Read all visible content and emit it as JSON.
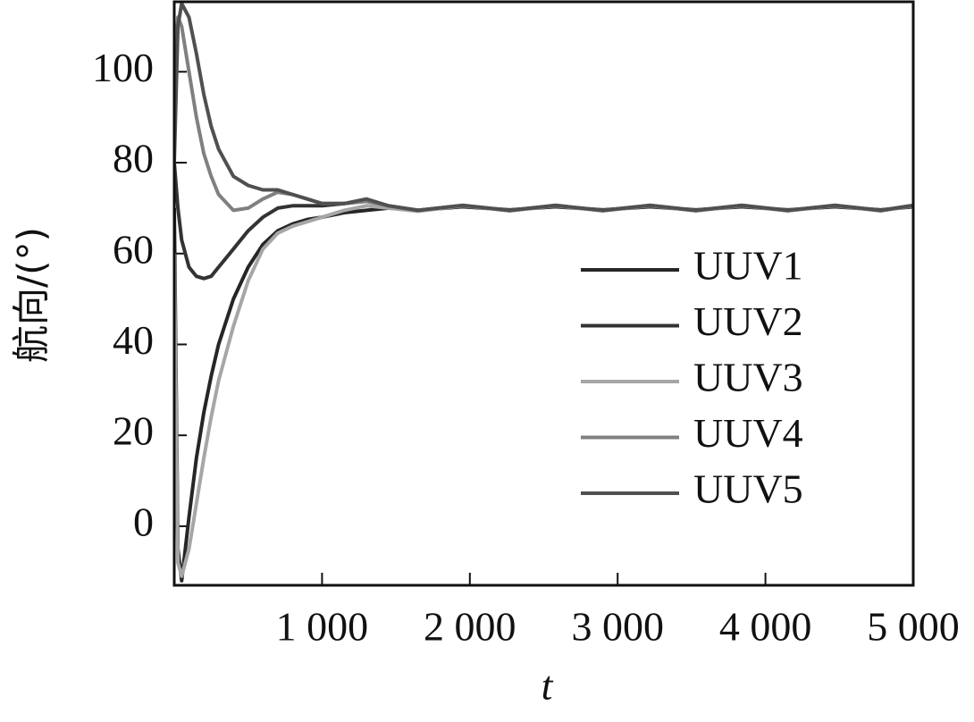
{
  "chart_data": {
    "type": "line",
    "xlabel": "t",
    "ylabel": "航向/(°)",
    "x": [
      0,
      25,
      50,
      100,
      150,
      200,
      250,
      300,
      400,
      500,
      600,
      700,
      800,
      900,
      1000,
      1150,
      1300,
      1450,
      1650,
      1950,
      2270,
      2580,
      2900,
      3220,
      3530,
      3840,
      4150,
      4470,
      4780,
      5000
    ],
    "series": [
      {
        "name": "UUV1",
        "color": "#262626",
        "values": [
          70,
          -5,
          -12,
          2,
          15,
          25,
          33,
          40,
          50,
          57,
          62,
          65,
          66.5,
          67.5,
          68,
          69,
          69.5,
          70,
          69.5,
          70.3,
          69.6,
          70.3,
          69.6,
          70.3,
          69.6,
          70.3,
          69.6,
          70.3,
          69.6,
          70.3
        ]
      },
      {
        "name": "UUV2",
        "color": "#333333",
        "values": [
          80,
          70,
          63,
          57,
          55,
          54.5,
          55,
          57,
          61,
          65,
          68,
          70,
          70.5,
          70.5,
          70.5,
          71,
          71.5,
          70.5,
          69.5,
          70.5,
          69.5,
          70.5,
          69.5,
          70.5,
          69.5,
          70.5,
          69.5,
          70.5,
          69.5,
          70.5
        ]
      },
      {
        "name": "UUV3",
        "color": "#a6a6a6",
        "values": [
          60,
          -8,
          -11,
          -5,
          5,
          15,
          24,
          32,
          44,
          54,
          61,
          64.5,
          66,
          67,
          68,
          69.5,
          70.5,
          70,
          69.3,
          70.5,
          69.4,
          70.5,
          69.4,
          70.5,
          69.4,
          70.5,
          69.4,
          70.5,
          69.4,
          70.5
        ]
      },
      {
        "name": "UUV4",
        "color": "#808080",
        "values": [
          100,
          112,
          110,
          100,
          90,
          82,
          77,
          73,
          69.5,
          70,
          72,
          73.5,
          73,
          72,
          71,
          71,
          71.5,
          70.5,
          69.5,
          70.6,
          69.4,
          70.6,
          69.4,
          70.6,
          69.4,
          70.6,
          69.4,
          70.6,
          69.4,
          70.6
        ]
      },
      {
        "name": "UUV5",
        "color": "#505050",
        "values": [
          80,
          110,
          115,
          112,
          104,
          95,
          88,
          83,
          77,
          75,
          74,
          74,
          73,
          72,
          71,
          71,
          72,
          70.5,
          69.5,
          70.6,
          69.5,
          70.6,
          69.5,
          70.6,
          69.5,
          70.6,
          69.5,
          70.6,
          69.5,
          70.6
        ]
      }
    ],
    "xlim": [
      0,
      5000
    ],
    "xticks": [
      {
        "value": 1000,
        "label": "1 000"
      },
      {
        "value": 2000,
        "label": "2 000"
      },
      {
        "value": 3000,
        "label": "3 000"
      },
      {
        "value": 4000,
        "label": "4 000"
      },
      {
        "value": 5000,
        "label": "5 000"
      }
    ],
    "ylim": [
      -13,
      115.4
    ],
    "yticks": [
      0,
      20,
      40,
      60,
      80,
      100
    ],
    "grid": false,
    "legend": "center right"
  }
}
